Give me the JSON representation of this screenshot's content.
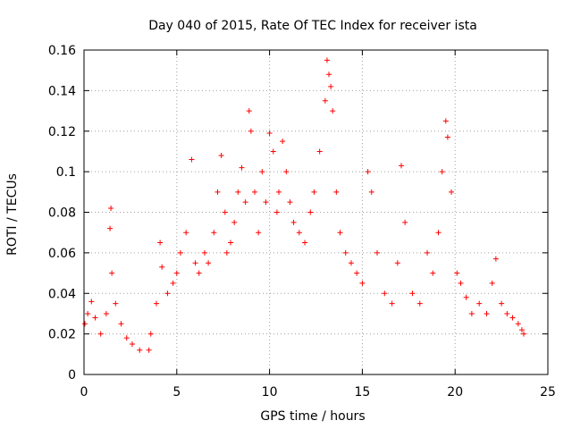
{
  "chart_data": {
    "type": "scatter",
    "title": "Day 040 of 2015, Rate Of TEC Index for receiver ista",
    "xlabel": "GPS time / hours",
    "ylabel": "ROTI / TECUs",
    "xlim": [
      0,
      25
    ],
    "ylim": [
      0,
      0.16
    ],
    "x_ticks": [
      "0",
      "5",
      "10",
      "15",
      "20",
      "25"
    ],
    "y_ticks": [
      "0",
      "0.02",
      "0.04",
      "0.06",
      "0.08",
      "0.1",
      "0.12",
      "0.14",
      "0.16"
    ],
    "grid": true,
    "marker": "+",
    "colors": {
      "series": "#ff0000",
      "grid": "#a0a0a0",
      "axes": "#000000"
    },
    "series": [
      {
        "name": "ROTI",
        "x": [
          0.05,
          0.2,
          0.4,
          0.6,
          0.9,
          1.2,
          1.4,
          1.45,
          1.5,
          1.7,
          2.0,
          2.3,
          2.6,
          3.0,
          3.5,
          3.6,
          3.9,
          4.1,
          4.2,
          4.5,
          4.8,
          5.0,
          5.2,
          5.5,
          5.8,
          6.0,
          6.2,
          6.5,
          6.7,
          7.0,
          7.2,
          7.4,
          7.6,
          7.7,
          7.9,
          8.1,
          8.3,
          8.5,
          8.7,
          8.9,
          9.0,
          9.2,
          9.4,
          9.6,
          9.8,
          10.0,
          10.2,
          10.4,
          10.5,
          10.7,
          10.9,
          11.1,
          11.3,
          11.6,
          11.9,
          12.2,
          12.4,
          12.7,
          13.0,
          13.1,
          13.2,
          13.3,
          13.4,
          13.6,
          13.8,
          14.1,
          14.4,
          14.7,
          15.0,
          15.3,
          15.5,
          15.8,
          16.2,
          16.6,
          16.9,
          17.1,
          17.3,
          17.7,
          18.1,
          18.5,
          18.8,
          19.1,
          19.3,
          19.5,
          19.6,
          19.8,
          20.1,
          20.3,
          20.6,
          20.9,
          21.3,
          21.7,
          22.0,
          22.2,
          22.5,
          22.8,
          23.1,
          23.4,
          23.6,
          23.7
        ],
        "y": [
          0.025,
          0.03,
          0.036,
          0.028,
          0.02,
          0.03,
          0.072,
          0.082,
          0.05,
          0.035,
          0.025,
          0.018,
          0.015,
          0.012,
          0.012,
          0.02,
          0.035,
          0.065,
          0.053,
          0.04,
          0.045,
          0.05,
          0.06,
          0.07,
          0.106,
          0.055,
          0.05,
          0.06,
          0.055,
          0.07,
          0.09,
          0.108,
          0.08,
          0.06,
          0.065,
          0.075,
          0.09,
          0.102,
          0.085,
          0.13,
          0.12,
          0.09,
          0.07,
          0.1,
          0.085,
          0.119,
          0.11,
          0.08,
          0.09,
          0.115,
          0.1,
          0.085,
          0.075,
          0.07,
          0.065,
          0.08,
          0.09,
          0.11,
          0.135,
          0.155,
          0.148,
          0.142,
          0.13,
          0.09,
          0.07,
          0.06,
          0.055,
          0.05,
          0.045,
          0.1,
          0.09,
          0.06,
          0.04,
          0.035,
          0.055,
          0.103,
          0.075,
          0.04,
          0.035,
          0.06,
          0.05,
          0.07,
          0.1,
          0.125,
          0.117,
          0.09,
          0.05,
          0.045,
          0.038,
          0.03,
          0.035,
          0.03,
          0.045,
          0.057,
          0.035,
          0.03,
          0.028,
          0.025,
          0.022,
          0.02
        ]
      }
    ]
  }
}
